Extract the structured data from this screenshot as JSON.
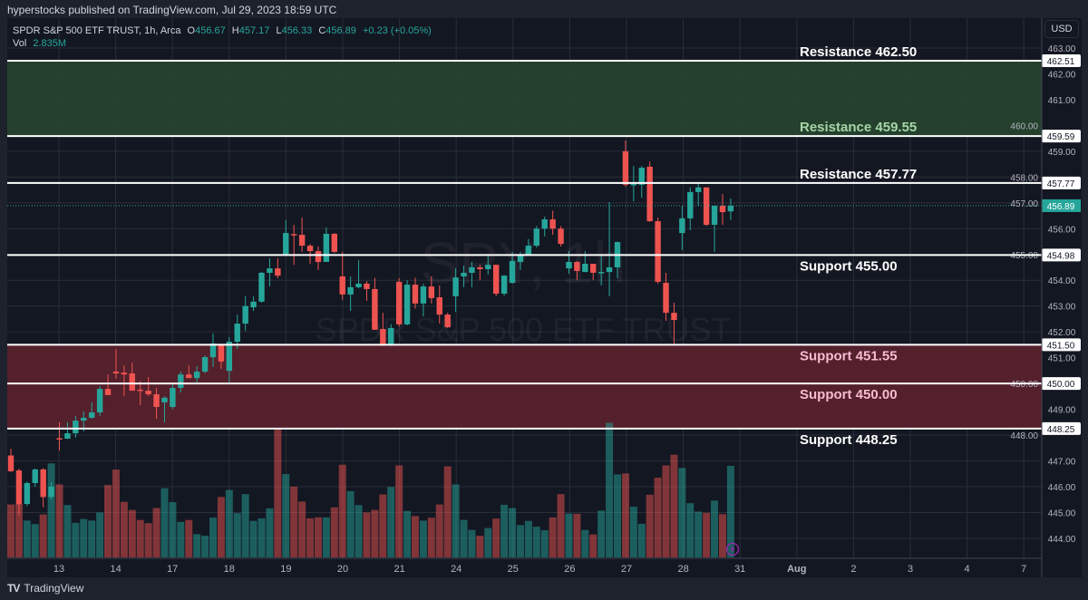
{
  "publish_line": "hyperstocks published on TradingView.com, Jul 29, 2023 18:59 UTC",
  "legend": {
    "symbol": "SPDR S&P 500 ETF TRUST, 1h, Arca",
    "o_label": "O",
    "o": "456.67",
    "h_label": "H",
    "h": "457.17",
    "l_label": "L",
    "l": "456.33",
    "c_label": "C",
    "c": "456.89",
    "change": "+0.23 (+0.05%)",
    "vol_label": "Vol",
    "vol": "2.835M"
  },
  "currency": "USD",
  "footer": {
    "logo": "TradingView"
  },
  "watermark": {
    "line1": "SPY, 1h",
    "line2": "SPDR S&P 500 ETF TRUST"
  },
  "colors": {
    "background": "#131722",
    "up": "#26a69a",
    "down": "#ef5350",
    "resistance_zone": "#26432f",
    "support_zone": "#57212d",
    "last_price": "#26a69a",
    "alert_icon": "#9c27b0"
  },
  "chart_data": {
    "type": "candlestick",
    "interval": "1h",
    "ylim": [
      443.5,
      463.4
    ],
    "y_ticks": [
      "463.00",
      "462.00",
      "461.00",
      "460.00",
      "459.00",
      "458.00",
      "457.00",
      "456.00",
      "455.00",
      "454.00",
      "453.00",
      "452.00",
      "451.00",
      "450.00",
      "449.00",
      "448.00",
      "447.00",
      "446.00",
      "445.00",
      "444.00"
    ],
    "x_tick_labels": [
      "13",
      "14",
      "17",
      "18",
      "19",
      "20",
      "21",
      "24",
      "25",
      "26",
      "27",
      "28",
      "31",
      "Aug",
      "2",
      "3",
      "4",
      "7"
    ],
    "grid": true,
    "ohlc_fields": [
      "open",
      "high",
      "low",
      "close"
    ],
    "candles": [
      [
        447.21,
        447.47,
        446.56,
        446.6
      ],
      [
        446.63,
        446.7,
        444.9,
        445.32
      ],
      [
        445.33,
        446.2,
        445.25,
        446.14
      ],
      [
        446.14,
        446.7,
        446.0,
        446.67
      ],
      [
        446.67,
        446.72,
        445.2,
        445.6
      ],
      [
        445.6,
        446.18,
        445.5,
        446.0
      ],
      [
        447.88,
        448.5,
        447.4,
        447.86
      ],
      [
        447.86,
        448.5,
        447.85,
        448.07
      ],
      [
        448.07,
        448.74,
        447.9,
        448.56
      ],
      [
        448.56,
        448.92,
        448.14,
        448.67
      ],
      [
        448.67,
        449.27,
        448.63,
        448.88
      ],
      [
        448.88,
        449.9,
        448.74,
        449.79
      ],
      [
        449.79,
        450.35,
        449.55,
        449.55
      ],
      [
        450.46,
        451.34,
        450.18,
        450.39
      ],
      [
        450.42,
        450.7,
        449.51,
        450.35
      ],
      [
        450.39,
        450.81,
        449.72,
        449.72
      ],
      [
        449.76,
        450.1,
        449.16,
        449.72
      ],
      [
        449.72,
        450.25,
        449.51,
        449.58
      ],
      [
        449.58,
        449.83,
        448.63,
        449.09
      ],
      [
        449.27,
        449.5,
        448.49,
        449.45
      ],
      [
        449.09,
        450.04,
        449.0,
        449.83
      ],
      [
        449.83,
        450.46,
        449.65,
        450.35
      ],
      [
        450.35,
        450.7,
        450.2,
        450.21
      ],
      [
        450.21,
        450.67,
        450.04,
        450.46
      ],
      [
        450.46,
        451.09,
        450.39,
        451.02
      ],
      [
        451.02,
        451.94,
        450.64,
        451.55
      ],
      [
        451.51,
        451.55,
        450.57,
        450.85
      ],
      [
        450.49,
        451.8,
        450.04,
        451.62
      ],
      [
        451.62,
        452.67,
        451.34,
        452.32
      ],
      [
        452.32,
        453.38,
        452.04,
        453.0
      ],
      [
        452.95,
        453.38,
        452.81,
        453.17
      ],
      [
        453.17,
        454.32,
        453.13,
        454.29
      ],
      [
        454.29,
        454.85,
        453.76,
        454.46
      ],
      [
        454.46,
        454.85,
        454.08,
        454.18
      ],
      [
        455.0,
        456.33,
        455.0,
        455.83
      ],
      [
        455.79,
        456.15,
        454.6,
        455.76
      ],
      [
        455.76,
        456.43,
        455.1,
        455.34
      ],
      [
        455.34,
        455.41,
        454.64,
        455.13
      ],
      [
        455.13,
        455.31,
        454.4,
        454.71
      ],
      [
        454.71,
        456.05,
        454.71,
        455.8
      ],
      [
        455.8,
        455.83,
        455.06,
        455.1
      ],
      [
        454.15,
        455.1,
        453.24,
        453.45
      ],
      [
        453.45,
        454.15,
        452.81,
        453.73
      ],
      [
        453.73,
        454.78,
        453.69,
        453.87
      ],
      [
        453.87,
        453.97,
        453.2,
        453.66
      ],
      [
        453.66,
        454.1,
        452.08,
        452.08
      ],
      [
        452.11,
        452.74,
        451.45,
        451.48
      ],
      [
        451.48,
        452.3,
        451.45,
        452.15
      ],
      [
        453.94,
        454.08,
        452.2,
        452.29
      ],
      [
        452.29,
        454.0,
        452.25,
        453.83
      ],
      [
        453.83,
        454.1,
        452.9,
        453.1
      ],
      [
        453.1,
        453.87,
        452.6,
        453.76
      ],
      [
        453.76,
        454.15,
        453.1,
        453.31
      ],
      [
        453.34,
        453.8,
        452.32,
        452.67
      ],
      [
        452.67,
        452.74,
        452.15,
        452.18
      ],
      [
        453.38,
        454.46,
        452.78,
        454.11
      ],
      [
        454.15,
        454.57,
        453.73,
        454.29
      ],
      [
        454.29,
        454.71,
        453.73,
        454.5
      ],
      [
        454.5,
        454.6,
        454.0,
        454.43
      ],
      [
        454.43,
        455.0,
        454.22,
        454.6
      ],
      [
        454.6,
        454.6,
        453.38,
        453.48
      ],
      [
        453.48,
        454.2,
        453.4,
        454.18
      ],
      [
        453.9,
        455.1,
        453.87,
        454.75
      ],
      [
        454.71,
        455.1,
        454.4,
        454.96
      ],
      [
        454.96,
        455.6,
        454.96,
        455.34
      ],
      [
        455.34,
        456.1,
        455.27,
        456.0
      ],
      [
        456.0,
        456.47,
        455.7,
        456.36
      ],
      [
        456.36,
        456.7,
        455.76,
        456.0
      ],
      [
        456.0,
        456.1,
        455.31,
        455.41
      ],
      [
        454.46,
        455.13,
        454.25,
        454.71
      ],
      [
        454.71,
        454.75,
        454.0,
        454.36
      ],
      [
        454.32,
        455.13,
        454.32,
        454.64
      ],
      [
        454.64,
        454.64,
        454.0,
        454.29
      ],
      [
        454.29,
        455.0,
        453.8,
        454.32
      ],
      [
        454.32,
        457.03,
        453.38,
        454.5
      ],
      [
        454.5,
        455.5,
        454.08,
        455.48
      ],
      [
        459.0,
        459.42,
        457.63,
        457.7
      ],
      [
        457.7,
        458.43,
        457.06,
        457.73
      ],
      [
        457.7,
        458.43,
        457.2,
        458.36
      ],
      [
        458.4,
        458.6,
        456.26,
        456.29
      ],
      [
        456.29,
        456.43,
        453.87,
        453.94
      ],
      [
        453.9,
        454.29,
        452.43,
        452.74
      ],
      [
        452.74,
        453.13,
        451.55,
        452.46
      ],
      [
        455.83,
        456.9,
        455.17,
        456.4
      ],
      [
        456.4,
        457.6,
        455.94,
        457.42
      ],
      [
        457.42,
        457.77,
        456.9,
        457.6
      ],
      [
        457.6,
        457.6,
        456.1,
        456.15
      ],
      [
        456.15,
        456.89,
        455.1,
        456.89
      ],
      [
        456.89,
        457.34,
        456.15,
        456.64
      ],
      [
        456.67,
        457.17,
        456.33,
        456.89
      ]
    ],
    "volume_millions": [
      1.64,
      1.66,
      1.14,
      1.03,
      1.33,
      2.91,
      2.26,
      1.62,
      1.07,
      1.19,
      1.14,
      1.39,
      2.24,
      2.72,
      1.72,
      1.47,
      1.16,
      1.06,
      1.53,
      2.14,
      1.71,
      1.1,
      1.16,
      0.72,
      0.67,
      1.23,
      1.87,
      2.09,
      1.37,
      1.96,
      1.13,
      1.21,
      1.52,
      4.0,
      2.58,
      2.19,
      1.73,
      1.21,
      1.24,
      1.24,
      1.55,
      2.87,
      2.05,
      1.62,
      1.39,
      1.47,
      1.95,
      2.18,
      2.85,
      1.44,
      1.28,
      1.14,
      1.23,
      1.64,
      2.82,
      2.26,
      1.16,
      0.85,
      0.67,
      0.91,
      1.2,
      1.63,
      1.53,
      1.0,
      1.13,
      0.95,
      0.84,
      1.24,
      1.96,
      1.36,
      1.35,
      0.85,
      0.71,
      1.45,
      4.17,
      2.57,
      2.6,
      1.57,
      1.04,
      1.94,
      2.47,
      2.85,
      3.18,
      2.77,
      1.68,
      1.42,
      1.38,
      1.76,
      1.34,
      2.835
    ],
    "last_price": "456.89",
    "levels": [
      {
        "label": "Resistance 462.50",
        "axis_label": "462.51",
        "price": 462.51,
        "label_side": "above",
        "label_tone": "white"
      },
      {
        "label": "Resistance 459.55",
        "axis_label": "459.59",
        "price": 459.59,
        "label_side": "above",
        "label_tone": "green"
      },
      {
        "label": "Resistance 457.77",
        "axis_label": "457.77",
        "price": 457.77,
        "label_side": "above",
        "label_tone": "white"
      },
      {
        "label": "Support 455.00",
        "axis_label": "454.98",
        "price": 454.98,
        "label_side": "below",
        "label_tone": "white"
      },
      {
        "label": "Support 451.55",
        "axis_label": "451.50",
        "price": 451.5,
        "label_side": "below",
        "label_tone": "pink"
      },
      {
        "label": "Support 450.00",
        "axis_label": "450.00",
        "price": 450.0,
        "label_side": "below",
        "label_tone": "pink"
      },
      {
        "label": "Support 448.25",
        "axis_label": "448.25",
        "price": 448.25,
        "label_side": "below",
        "label_tone": "white"
      }
    ],
    "zones": [
      {
        "type": "resistance",
        "from": 459.59,
        "to": 462.51
      },
      {
        "type": "support",
        "from": 448.25,
        "to": 451.5
      }
    ]
  }
}
